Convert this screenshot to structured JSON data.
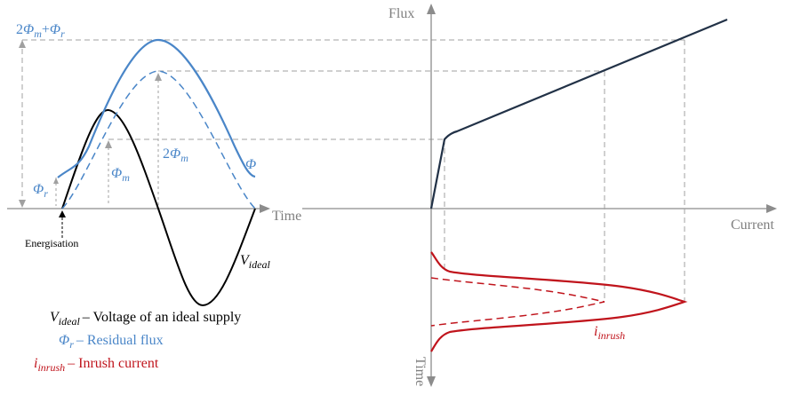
{
  "left_plot": {
    "time_label": "Time",
    "energisation_label": "Energisation",
    "labels": {
      "phi_peak": {
        "pre": "2",
        "sym": "Φ",
        "sub": "m",
        "mid": "+",
        "sym2": "Φ",
        "sub2": "r"
      },
      "phi_r": {
        "sym": "Φ",
        "sub": "r"
      },
      "phi_m": {
        "sym": "Φ",
        "sub": "m"
      },
      "two_phi_m": {
        "pre": "2",
        "sym": "Φ",
        "sub": "m"
      },
      "phi": {
        "sym": "Φ"
      },
      "v_ideal": {
        "sym": "V",
        "sub": "ideal"
      }
    },
    "legend": [
      {
        "sym": "V",
        "sub": "ideal",
        "desc": "– Voltage of an ideal supply",
        "color": "#000000"
      },
      {
        "sym": "Φ",
        "sub": "r",
        "desc": "– Residual flux",
        "color": "#4a86c8"
      },
      {
        "sym": "i",
        "sub": "inrush",
        "desc": "– Inrush current",
        "color": "#c0141c"
      }
    ]
  },
  "right_plot": {
    "flux_label": "Flux",
    "current_label": "Current",
    "time_label": "Time",
    "i_inrush_label": {
      "sym": "i",
      "sub": "inrush"
    }
  },
  "colors": {
    "voltage": "#000000",
    "flux": "#4a86c8",
    "inrush": "#c0141c",
    "magnetisation": "#223247",
    "axis": "#8c8c8c",
    "guide": "#a0a0a0"
  }
}
